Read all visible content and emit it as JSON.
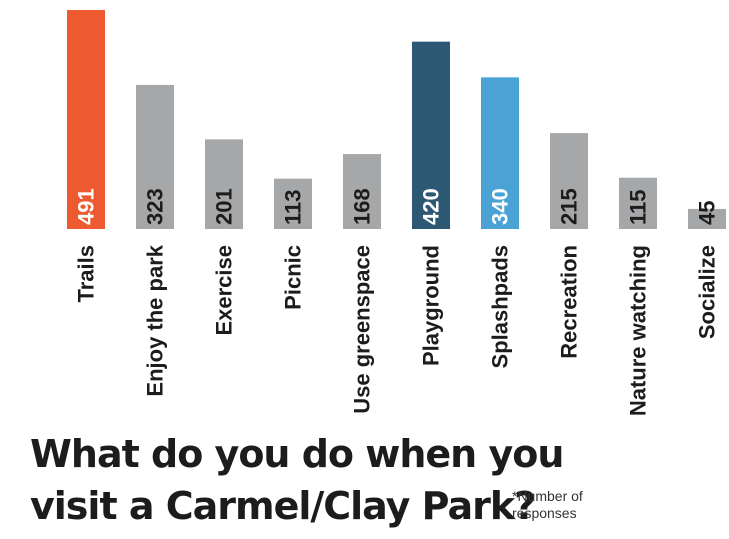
{
  "chart_data": {
    "type": "bar",
    "categories": [
      "Trails",
      "Enjoy the park",
      "Exercise",
      "Picnic",
      "Use greenspace",
      "Playground",
      "Splashpads",
      "Recreation",
      "Nature watching",
      "Socialize"
    ],
    "values": [
      491,
      323,
      201,
      113,
      168,
      420,
      340,
      215,
      115,
      45
    ],
    "colors": [
      "#ee5a2f",
      "#a6a7a9",
      "#a6a7a9",
      "#a6a7a9",
      "#a6a7a9",
      "#2c5874",
      "#4aa3d4",
      "#a6a7a9",
      "#a6a7a9",
      "#a6a7a9"
    ],
    "title_lines": [
      "What do you do when you",
      "visit a Carmel/Clay Park?"
    ],
    "footnote": "*Number of responses",
    "ylim": [
      0,
      491
    ],
    "grid": false,
    "legend": "none"
  }
}
